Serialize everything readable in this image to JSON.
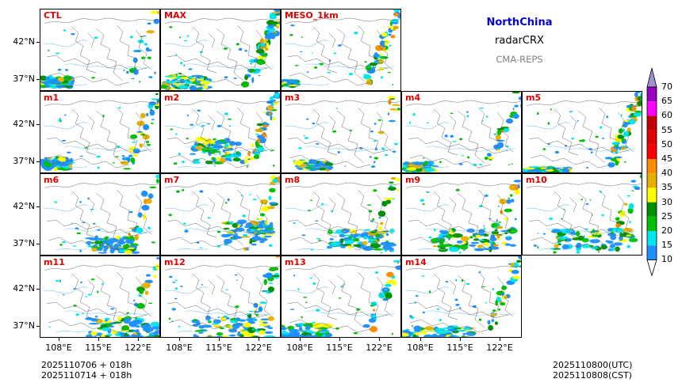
{
  "title": {
    "region": "NorthChina",
    "variable": "radarCRX",
    "system": "CMA-REPS"
  },
  "panels": [
    {
      "label": "CTL"
    },
    {
      "label": "MAX"
    },
    {
      "label": "MESO_1km"
    },
    {
      "label": "m1"
    },
    {
      "label": "m2"
    },
    {
      "label": "m3"
    },
    {
      "label": "m4"
    },
    {
      "label": "m5"
    },
    {
      "label": "m6"
    },
    {
      "label": "m7"
    },
    {
      "label": "m8"
    },
    {
      "label": "m9"
    },
    {
      "label": "m10"
    },
    {
      "label": "m11"
    },
    {
      "label": "m12"
    },
    {
      "label": "m13"
    },
    {
      "label": "m14"
    }
  ],
  "axes": {
    "lat_labels": [
      "42°N",
      "37°N"
    ],
    "lon_labels": [
      "108°E",
      "115°E",
      "122°E"
    ]
  },
  "footer": {
    "left_line1": "2025110706  +  018h",
    "left_line2": "2025110714  +  018h",
    "right_line1": "2025110800(UTC)",
    "right_line2": "2025110808(CST)"
  },
  "colorbar": {
    "levels": [
      "10",
      "15",
      "20",
      "25",
      "30",
      "35",
      "40",
      "45",
      "50",
      "55",
      "60",
      "65",
      "70"
    ],
    "colors": [
      "#1e90ff",
      "#00e5ee",
      "#00c000",
      "#009000",
      "#ffff00",
      "#e6b000",
      "#ff8c00",
      "#ff0000",
      "#e00000",
      "#c00000",
      "#ff00ff",
      "#9900c0",
      "#a090d0"
    ],
    "extend": "both"
  }
}
